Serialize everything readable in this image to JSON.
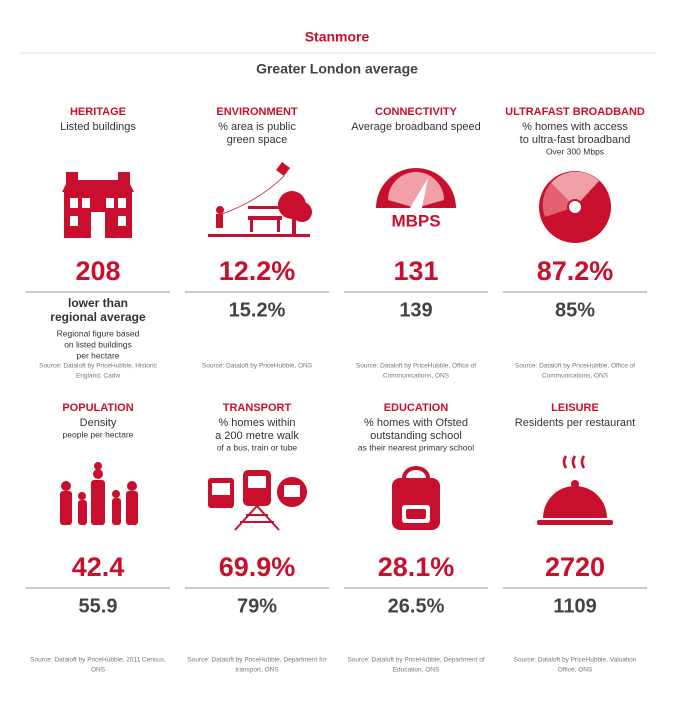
{
  "header": {
    "title": "Stanmore",
    "subtitle": "Greater London average"
  },
  "cards": [
    {
      "title": "HERITAGE",
      "subtitle": [
        "Listed buildings"
      ],
      "value": "208",
      "average_text": [
        "lower than",
        "regional average"
      ],
      "average_note": [
        "Regional figure based",
        "on listed buildings",
        "per hectare"
      ],
      "source": [
        "Source: Dataloft by PriceHubble, Historic",
        "England, Cadw"
      ]
    },
    {
      "title": "ENVIRONMENT",
      "subtitle": [
        "% area is public",
        "green space"
      ],
      "value": "12.2%",
      "average": "15.2%",
      "source": [
        "Source: Dataloft by PriceHubble, ONS"
      ]
    },
    {
      "title": "CONNECTIVITY",
      "subtitle": [
        "Average broadband speed"
      ],
      "icon_label": "MBPS",
      "value": "131",
      "average": "139",
      "source": [
        "Source: Dataloft by PriceHubble, Office of",
        "Communications, ONS"
      ]
    },
    {
      "title": "ULTRAFAST BROADBAND",
      "subtitle": [
        "% homes with access",
        "to ultra-fast broadband"
      ],
      "detail": "Over 300 Mbps",
      "value": "87.2%",
      "average": "85%",
      "source": [
        "Source: Dataloft by PriceHubble, Office of",
        "Communications, ONS"
      ]
    },
    {
      "title": "POPULATION",
      "subtitle": [
        "Density"
      ],
      "detail": "people per hectare",
      "value": "42.4",
      "average": "55.9",
      "source": [
        "Source: Dataloft by PriceHubble, 2011 Census,",
        "ONS"
      ]
    },
    {
      "title": "TRANSPORT",
      "subtitle": [
        "% homes within",
        "a 200 metre walk"
      ],
      "detail": "of a bus, train or tube",
      "value": "69.9%",
      "average": "79%",
      "source": [
        "Source: Dataloft by PriceHubble, Department for",
        "transport, ONS"
      ]
    },
    {
      "title": "EDUCATION",
      "subtitle": [
        "% homes with Ofsted",
        "outstanding school"
      ],
      "detail": "as their nearest primary school",
      "value": "28.1%",
      "average": "26.5%",
      "source": [
        "Source: Dataloft by PriceHubble, Department of",
        "Education, ONS"
      ]
    },
    {
      "title": "LEISURE",
      "subtitle": [
        "Residents per restaurant"
      ],
      "value": "2720",
      "average": "1109",
      "source": [
        "Source: Dataloft by PriceHubble, Valuation",
        "Office, ONS"
      ]
    }
  ]
}
